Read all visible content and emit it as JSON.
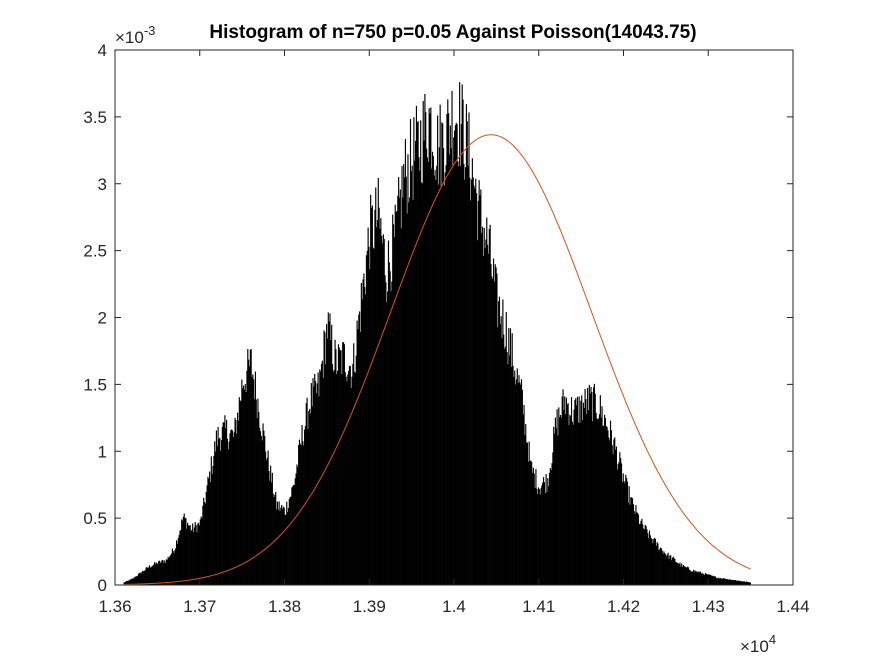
{
  "chart_data": {
    "type": "histogram",
    "title": "Histogram of n=750 p=0.05 Against Poisson(14043.75)",
    "xlabel": "",
    "ylabel": "",
    "xlim": [
      13600,
      14400
    ],
    "ylim": [
      0,
      0.004
    ],
    "x_exponent_label": "×10",
    "x_exponent_power": "4",
    "y_exponent_label": "×10",
    "y_exponent_power": "-3",
    "x_ticks": [
      13600,
      13700,
      13800,
      13900,
      14000,
      14100,
      14200,
      14300,
      14400
    ],
    "x_tick_labels": [
      "1.36",
      "1.37",
      "1.38",
      "1.39",
      "1.4",
      "1.41",
      "1.42",
      "1.43",
      "1.44"
    ],
    "y_ticks": [
      0,
      0.0005,
      0.001,
      0.0015,
      0.002,
      0.0025,
      0.003,
      0.0035,
      0.004
    ],
    "y_tick_labels": [
      "0",
      "0.5",
      "1",
      "1.5",
      "2",
      "2.5",
      "3",
      "3.5",
      "4"
    ],
    "grid": false,
    "legend": "none",
    "series": [
      {
        "type": "histogram",
        "color": "#000000",
        "x_range": [
          13610,
          14350
        ],
        "envelope_x": [
          13610,
          13620,
          13630,
          13640,
          13650,
          13660,
          13670,
          13680,
          13690,
          13700,
          13710,
          13720,
          13730,
          13740,
          13750,
          13760,
          13770,
          13780,
          13790,
          13800,
          13810,
          13820,
          13830,
          13840,
          13850,
          13860,
          13870,
          13880,
          13890,
          13900,
          13910,
          13920,
          13930,
          13940,
          13950,
          13960,
          13970,
          13980,
          13990,
          14000,
          14010,
          14020,
          14030,
          14040,
          14050,
          14060,
          14070,
          14080,
          14090,
          14100,
          14110,
          14120,
          14130,
          14140,
          14150,
          14160,
          14170,
          14180,
          14190,
          14200,
          14210,
          14220,
          14230,
          14240,
          14250,
          14260,
          14270,
          14280,
          14290,
          14300,
          14310,
          14320,
          14330,
          14340,
          14350
        ],
        "envelope_y": [
          2e-05,
          5e-05,
          0.0001,
          0.00015,
          0.00018,
          0.0002,
          0.0003,
          0.00055,
          0.00045,
          0.0005,
          0.00085,
          0.0012,
          0.00125,
          0.0012,
          0.00165,
          0.0018,
          0.0014,
          0.001,
          0.00065,
          0.0006,
          0.0008,
          0.0012,
          0.0015,
          0.0016,
          0.0021,
          0.0018,
          0.00185,
          0.00175,
          0.0023,
          0.00285,
          0.003,
          0.00255,
          0.0028,
          0.0033,
          0.00345,
          0.0036,
          0.0038,
          0.00355,
          0.00365,
          0.00385,
          0.0037,
          0.0034,
          0.003,
          0.00275,
          0.0023,
          0.0021,
          0.0018,
          0.0015,
          0.00095,
          0.0008,
          0.00085,
          0.0013,
          0.0015,
          0.0014,
          0.00145,
          0.0015,
          0.00145,
          0.0013,
          0.0011,
          0.00085,
          0.00065,
          0.0005,
          0.0004,
          0.00032,
          0.00025,
          0.0002,
          0.00015,
          0.00012,
          0.0001,
          8e-05,
          6e-05,
          5e-05,
          4e-05,
          3e-05,
          2e-05
        ]
      },
      {
        "type": "line",
        "color": "#d95319",
        "distribution": "Poisson",
        "mean": 14043.75,
        "x_range": [
          13610,
          14350
        ]
      }
    ]
  }
}
